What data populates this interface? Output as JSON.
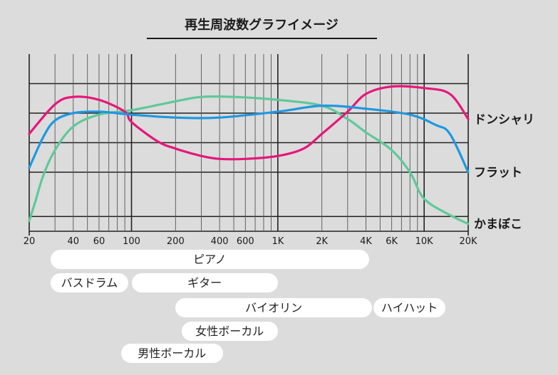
{
  "chart_data": {
    "type": "line",
    "title": "再生周波数グラフイメージ",
    "x_scale": "log",
    "xlim": [
      20,
      20000
    ],
    "ylim": [
      0,
      6
    ],
    "grid": true,
    "x_ticks": [
      {
        "value": 20,
        "label": "20"
      },
      {
        "value": 40,
        "label": "40"
      },
      {
        "value": 60,
        "label": "60"
      },
      {
        "value": 100,
        "label": "100"
      },
      {
        "value": 200,
        "label": "200"
      },
      {
        "value": 400,
        "label": "400"
      },
      {
        "value": 600,
        "label": "600"
      },
      {
        "value": 1000,
        "label": "1K"
      },
      {
        "value": 2000,
        "label": "2K"
      },
      {
        "value": 4000,
        "label": "4K"
      },
      {
        "value": 6000,
        "label": "6K"
      },
      {
        "value": 10000,
        "label": "10K"
      },
      {
        "value": 20000,
        "label": "20K"
      }
    ],
    "series": [
      {
        "name": "ドンシャリ",
        "color": "#e6177a",
        "points": [
          [
            20,
            3.3
          ],
          [
            30,
            4.3
          ],
          [
            40,
            4.55
          ],
          [
            60,
            4.45
          ],
          [
            90,
            4.05
          ],
          [
            100,
            3.7
          ],
          [
            150,
            3.05
          ],
          [
            200,
            2.8
          ],
          [
            300,
            2.55
          ],
          [
            400,
            2.45
          ],
          [
            600,
            2.45
          ],
          [
            1000,
            2.55
          ],
          [
            1500,
            2.8
          ],
          [
            2000,
            3.3
          ],
          [
            3000,
            4.05
          ],
          [
            4000,
            4.65
          ],
          [
            6000,
            4.9
          ],
          [
            10000,
            4.85
          ],
          [
            15000,
            4.65
          ],
          [
            20000,
            3.8
          ]
        ]
      },
      {
        "name": "フラット",
        "color": "#1e98e0",
        "points": [
          [
            20,
            2.15
          ],
          [
            25,
            3.2
          ],
          [
            30,
            3.75
          ],
          [
            40,
            4.0
          ],
          [
            60,
            4.05
          ],
          [
            100,
            3.95
          ],
          [
            200,
            3.85
          ],
          [
            400,
            3.85
          ],
          [
            1000,
            4.05
          ],
          [
            2000,
            4.25
          ],
          [
            4000,
            4.15
          ],
          [
            8000,
            3.95
          ],
          [
            12000,
            3.6
          ],
          [
            15000,
            3.3
          ],
          [
            20000,
            2.0
          ]
        ]
      },
      {
        "name": "かまぼこ",
        "color": "#5fc89a",
        "points": [
          [
            20,
            0.35
          ],
          [
            22,
            1.0
          ],
          [
            25,
            1.9
          ],
          [
            30,
            2.75
          ],
          [
            40,
            3.55
          ],
          [
            60,
            3.95
          ],
          [
            100,
            4.1
          ],
          [
            200,
            4.4
          ],
          [
            300,
            4.55
          ],
          [
            500,
            4.55
          ],
          [
            1000,
            4.45
          ],
          [
            2000,
            4.25
          ],
          [
            3000,
            3.8
          ],
          [
            4000,
            3.35
          ],
          [
            6000,
            2.75
          ],
          [
            8000,
            2.0
          ],
          [
            10000,
            1.1
          ],
          [
            15000,
            0.55
          ],
          [
            20000,
            0.25
          ]
        ]
      }
    ],
    "instrument_ranges": [
      {
        "label": "ピアノ",
        "from": 28,
        "to": 4200
      },
      {
        "label": "バスドラム",
        "from": 28,
        "to": 95
      },
      {
        "label": "ギター",
        "from": 100,
        "to": 1000
      },
      {
        "label": "バイオリン",
        "from": 200,
        "to": 4400
      },
      {
        "label": "ハイハット",
        "from": 4500,
        "to": 14000
      },
      {
        "label": "女性ボーカル",
        "from": 220,
        "to": 1000
      },
      {
        "label": "男性ボーカル",
        "from": 85,
        "to": 420
      }
    ]
  }
}
